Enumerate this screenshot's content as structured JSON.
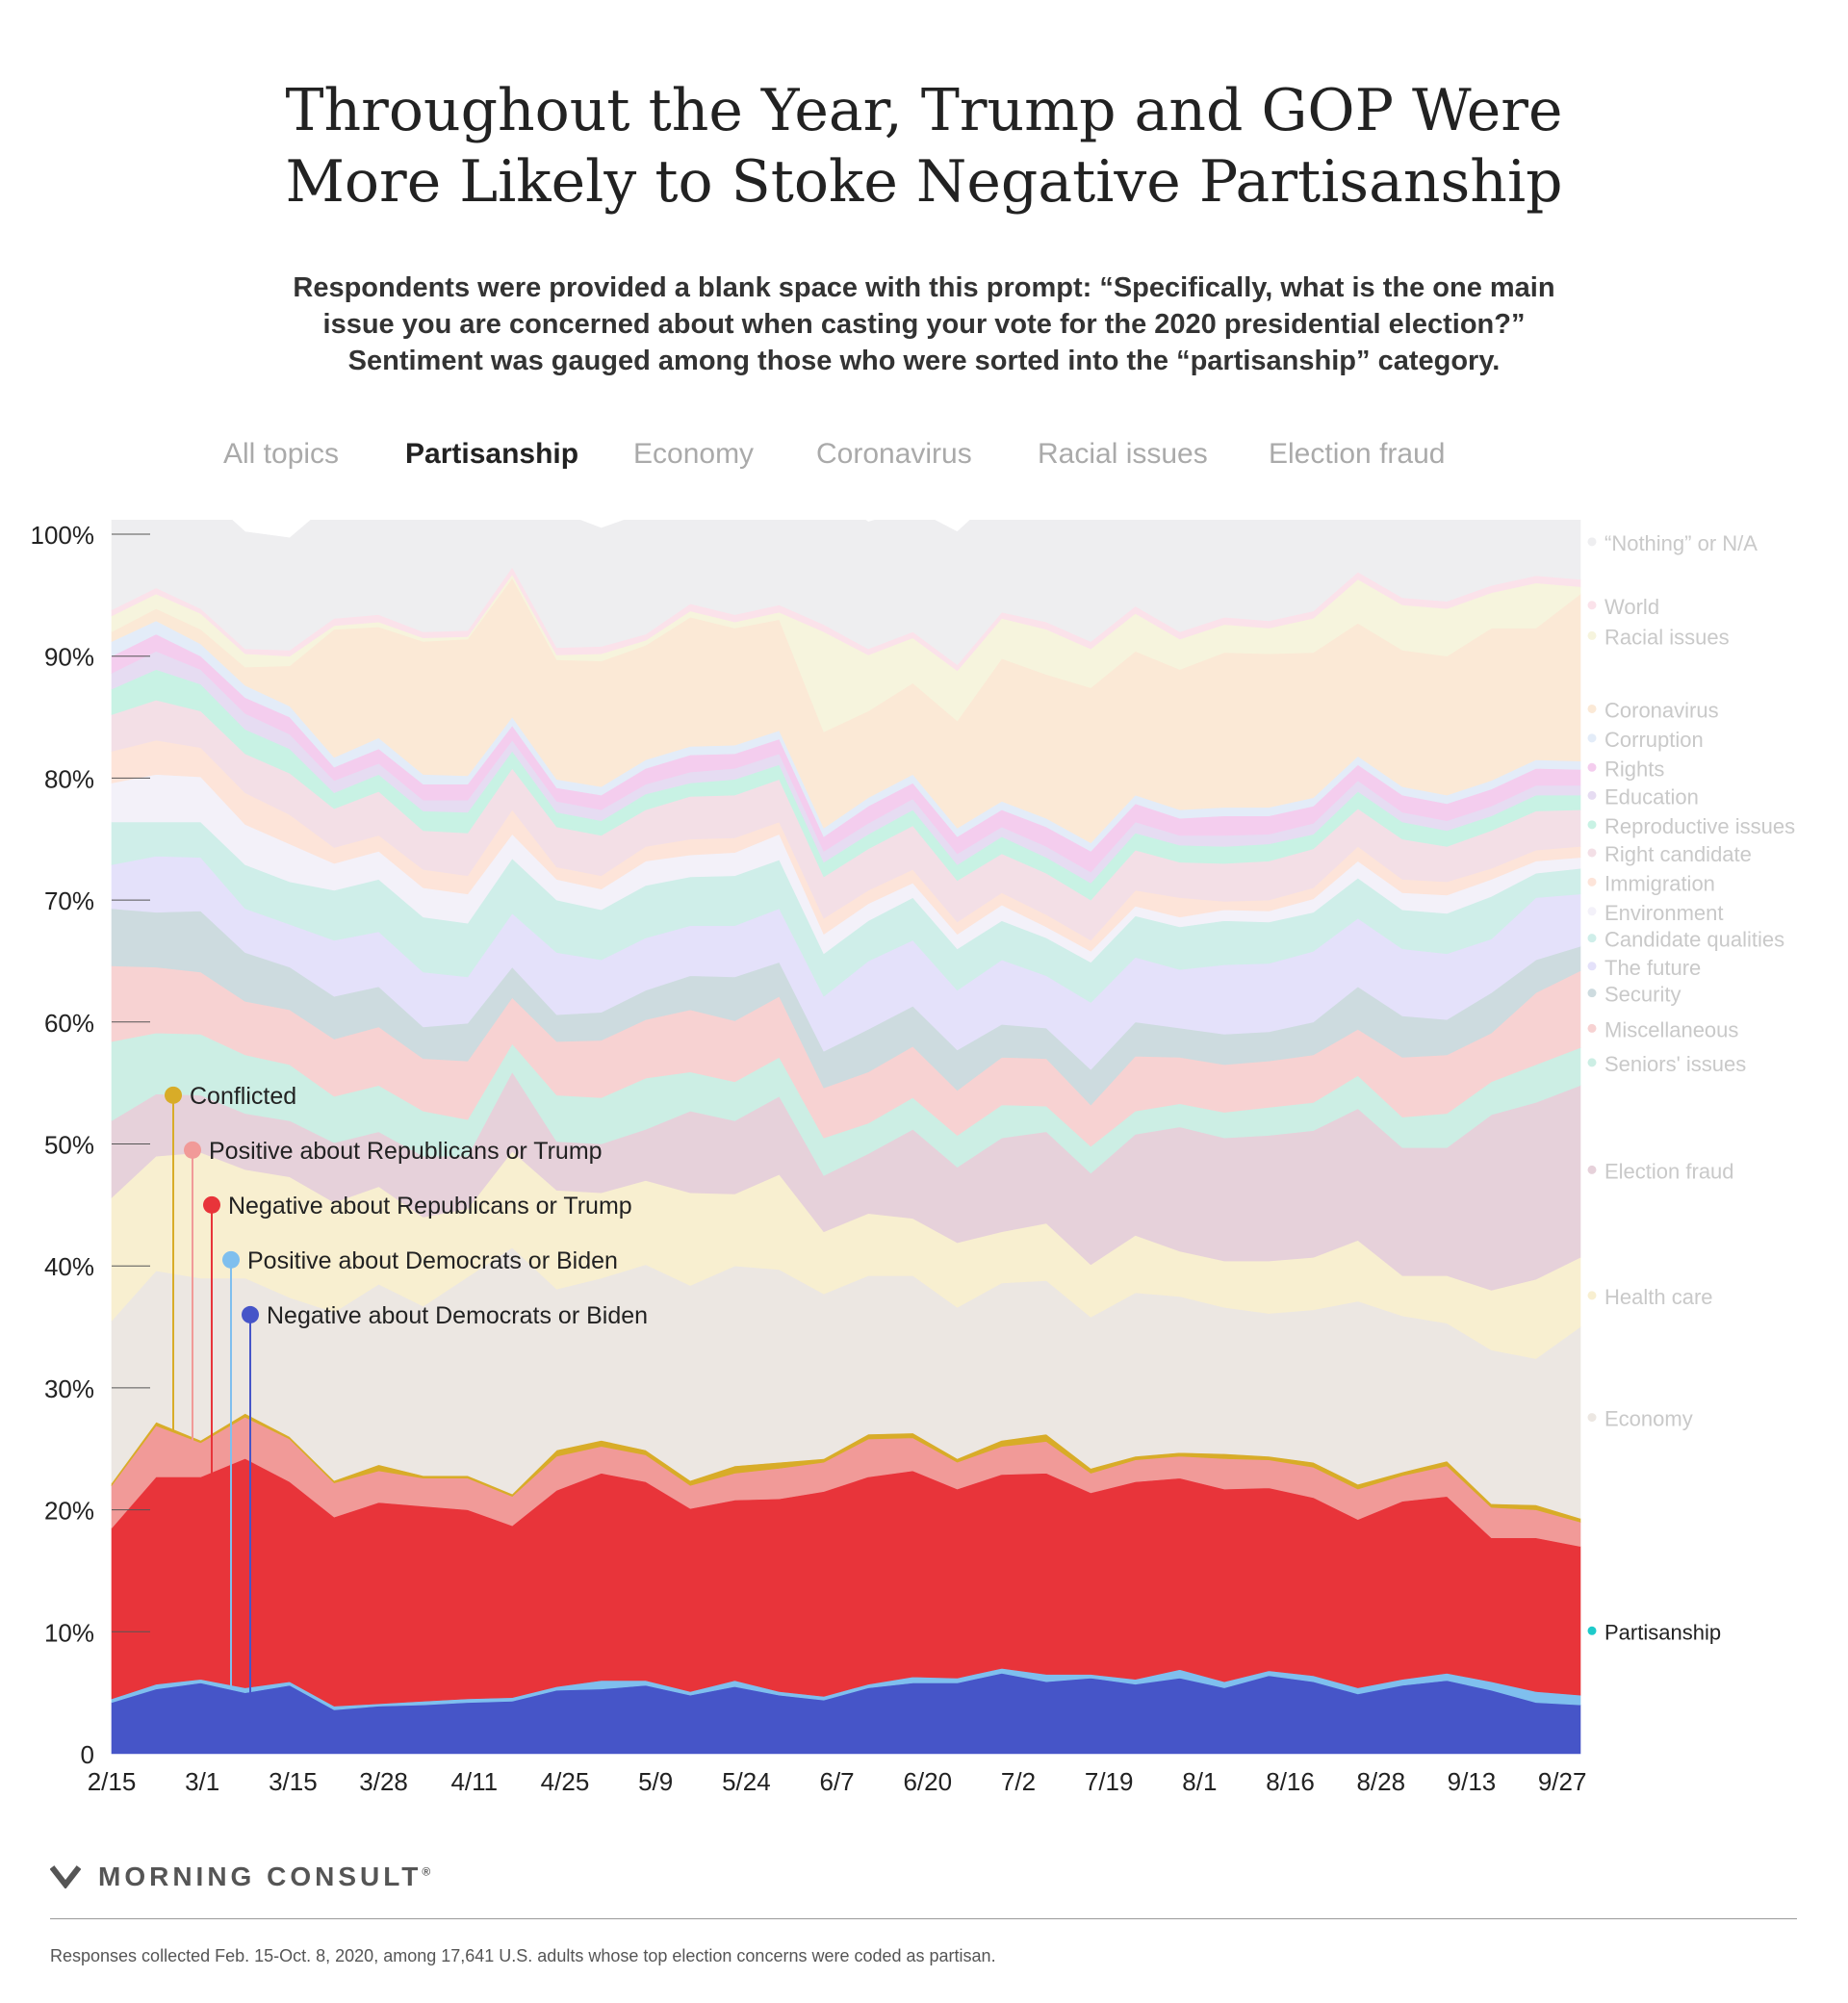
{
  "title": {
    "line1": "Throughout the Year, Trump and GOP Were",
    "line2": "More Likely to Stoke Negative Partisanship"
  },
  "subtitle": {
    "line1": "Respondents were provided a blank space with this prompt: “Specifically, what is the one main",
    "line2": "issue you are concerned about when casting your vote for the 2020 presidential election?”",
    "line3": "Sentiment was gauged among those who were sorted into the “partisanship” category."
  },
  "tabs": [
    {
      "label": "All topics",
      "active": false
    },
    {
      "label": "Partisanship",
      "active": true
    },
    {
      "label": "Economy",
      "active": false
    },
    {
      "label": "Coronavirus",
      "active": false
    },
    {
      "label": "Racial issues",
      "active": false
    },
    {
      "label": "Election fraud",
      "active": false
    }
  ],
  "brand": {
    "name": "MORNING CONSULT",
    "mark": "®"
  },
  "footnote": "Responses collected Feb. 15-Oct. 8, 2020, among 17,641 U.S. adults whose top election concerns were coded as partisan.",
  "chart_data": {
    "type": "area",
    "stacked": true,
    "ylim": [
      0,
      100
    ],
    "yticks": [
      "0",
      "10%",
      "20%",
      "30%",
      "40%",
      "50%",
      "60%",
      "70%",
      "80%",
      "90%",
      "100%"
    ],
    "x_tick_labels": [
      "2/15",
      "3/1",
      "3/15",
      "3/28",
      "4/11",
      "4/25",
      "5/9",
      "5/24",
      "6/7",
      "6/20",
      "7/2",
      "7/19",
      "8/1",
      "8/16",
      "8/28",
      "9/13",
      "9/27"
    ],
    "partisanship_layers": [
      {
        "name": "Negative about Democrats or Biden",
        "color": "#4655c8",
        "values": [
          4.2,
          5.3,
          5.8,
          5.0,
          5.6,
          3.6,
          3.9,
          4.0,
          4.2,
          4.3,
          5.2,
          5.3,
          5.6,
          4.8,
          5.5,
          4.8,
          4.4,
          5.4,
          5.8,
          5.8,
          6.6,
          5.9,
          6.2,
          5.7,
          6.2,
          5.4,
          6.4,
          5.9,
          4.9,
          5.6,
          6.0,
          5.2,
          4.2,
          4.0
        ]
      },
      {
        "name": "Positive about Democrats or Biden",
        "color": "#7fbfee",
        "values": [
          0.3,
          0.4,
          0.3,
          0.4,
          0.3,
          0.3,
          0.2,
          0.3,
          0.3,
          0.3,
          0.3,
          0.7,
          0.4,
          0.3,
          0.5,
          0.3,
          0.3,
          0.3,
          0.5,
          0.4,
          0.4,
          0.6,
          0.3,
          0.4,
          0.7,
          0.5,
          0.4,
          0.5,
          0.5,
          0.5,
          0.6,
          0.7,
          0.9,
          0.8
        ]
      },
      {
        "name": "Negative about Republicans or Trump",
        "color": "#e8343a",
        "values": [
          14.0,
          17.0,
          16.6,
          18.8,
          16.4,
          15.5,
          16.5,
          16.0,
          15.5,
          14.1,
          16.1,
          17.0,
          16.3,
          15.0,
          14.8,
          15.8,
          16.8,
          17.0,
          16.9,
          15.5,
          15.9,
          16.5,
          14.9,
          16.2,
          15.7,
          15.8,
          15.0,
          14.6,
          13.8,
          14.6,
          14.5,
          11.8,
          12.6,
          12.2
        ]
      },
      {
        "name": "Positive about Republicans or Trump",
        "color": "#f19a98",
        "values": [
          3.5,
          4.2,
          2.8,
          3.4,
          3.5,
          2.8,
          2.6,
          2.3,
          2.6,
          2.4,
          2.8,
          2.2,
          2.2,
          1.9,
          2.2,
          2.5,
          2.4,
          3.1,
          2.7,
          2.2,
          2.3,
          2.6,
          1.6,
          1.8,
          1.8,
          2.5,
          2.3,
          2.5,
          2.5,
          2.1,
          2.5,
          2.5,
          2.3,
          2.0
        ]
      },
      {
        "name": "Conflicted",
        "color": "#d8ac28",
        "values": [
          0.2,
          0.3,
          0.2,
          0.3,
          0.2,
          0.2,
          0.5,
          0.2,
          0.2,
          0.2,
          0.5,
          0.5,
          0.4,
          0.4,
          0.6,
          0.5,
          0.3,
          0.4,
          0.4,
          0.3,
          0.5,
          0.6,
          0.4,
          0.3,
          0.3,
          0.4,
          0.3,
          0.4,
          0.4,
          0.3,
          0.4,
          0.3,
          0.4,
          0.3
        ]
      }
    ],
    "category_layers": [
      {
        "name": "Partisanship",
        "color": "#1ecaca",
        "values": [
          22.2,
          27.2,
          25.7,
          27.9,
          26.0,
          22.4,
          23.7,
          22.8,
          23.2,
          21.4,
          24.9,
          25.7,
          24.9,
          22.4,
          23.6,
          23.9,
          24.2,
          26.2,
          26.3,
          24.2,
          25.7,
          25.8,
          23.4,
          24.4,
          24.7,
          24.6,
          24.4,
          23.9,
          22.1,
          23.1,
          24.0,
          20.5,
          20.4,
          19.3
        ]
      },
      {
        "name": "Economy",
        "color": "#ece7e2",
        "values": [
          13.3,
          12.4,
          13.3,
          11.1,
          11.4,
          13.8,
          14.8,
          13.9,
          16.3,
          20.2,
          13.2,
          13.3,
          15.2,
          16.0,
          16.4,
          15.8,
          13.5,
          13.0,
          12.9,
          12.4,
          12.9,
          12.6,
          12.4,
          13.4,
          12.8,
          12.0,
          11.7,
          12.5,
          15.0,
          12.8,
          11.3,
          12.6,
          12.0,
          15.7
        ]
      },
      {
        "name": "Health care",
        "color": "#f8efd0",
        "values": [
          10.1,
          9.4,
          10.3,
          8.9,
          9.9,
          9.0,
          8.0,
          7.3,
          5.6,
          7.9,
          8.1,
          7.0,
          6.9,
          7.6,
          5.9,
          7.8,
          5.1,
          5.1,
          4.7,
          5.3,
          4.2,
          4.7,
          4.3,
          4.7,
          3.7,
          3.8,
          4.3,
          4.3,
          5.0,
          3.3,
          3.9,
          4.9,
          6.5,
          5.7
        ]
      },
      {
        "name": "Election fraud",
        "color": "#e6d1da",
        "values": [
          6.3,
          5.1,
          4.7,
          4.6,
          4.6,
          4.9,
          4.5,
          5.0,
          4.3,
          6.5,
          4.0,
          4.0,
          4.2,
          6.7,
          6.0,
          6.4,
          4.6,
          4.9,
          7.3,
          6.2,
          7.7,
          7.5,
          7.5,
          8.3,
          10.2,
          10.1,
          10.3,
          10.4,
          10.8,
          10.5,
          10.5,
          14.4,
          14.5,
          14.1
        ]
      },
      {
        "name": "Seniors' issues",
        "color": "#cceee4",
        "values": [
          6.5,
          5.0,
          5.0,
          4.8,
          4.6,
          3.8,
          3.8,
          3.7,
          3.0,
          2.3,
          3.8,
          3.8,
          4.2,
          3.2,
          3.2,
          3.2,
          3.1,
          2.5,
          2.6,
          2.6,
          2.7,
          2.1,
          2.2,
          1.9,
          1.9,
          2.1,
          2.3,
          2.3,
          2.7,
          2.5,
          2.8,
          2.7,
          3.1,
          3.1
        ]
      },
      {
        "name": "Miscellaneous",
        "color": "#f7d2d2",
        "values": [
          6.2,
          5.4,
          5.1,
          4.4,
          4.5,
          4.7,
          4.8,
          4.3,
          4.8,
          3.8,
          4.4,
          4.7,
          4.8,
          5.1,
          5.0,
          5.0,
          4.1,
          4.2,
          4.2,
          3.7,
          3.9,
          3.9,
          3.4,
          4.5,
          3.8,
          3.9,
          3.8,
          3.9,
          3.8,
          4.9,
          4.8,
          4.0,
          5.9,
          6.3
        ]
      },
      {
        "name": "Security",
        "color": "#cddbdf",
        "values": [
          4.7,
          4.5,
          5.0,
          4.0,
          3.5,
          3.5,
          3.3,
          2.6,
          3.1,
          2.5,
          2.2,
          2.3,
          2.4,
          2.8,
          3.6,
          2.8,
          3.0,
          3.5,
          3.3,
          3.3,
          2.7,
          2.5,
          2.9,
          2.8,
          2.4,
          2.5,
          2.4,
          2.7,
          3.5,
          3.4,
          2.9,
          3.3,
          2.7,
          2.0
        ]
      },
      {
        "name": "The future",
        "color": "#e4e1fa",
        "values": [
          3.6,
          4.6,
          4.4,
          3.6,
          3.5,
          4.6,
          4.5,
          4.5,
          3.8,
          4.4,
          5.1,
          4.3,
          4.3,
          4.1,
          4.2,
          4.4,
          4.5,
          5.6,
          5.4,
          4.9,
          5.3,
          4.3,
          5.5,
          5.3,
          4.8,
          5.7,
          5.6,
          5.8,
          5.6,
          5.5,
          5.4,
          4.4,
          5.1,
          4.3
        ]
      },
      {
        "name": "Candidate qualities",
        "color": "#cfeee9",
        "values": [
          3.5,
          2.8,
          2.9,
          3.6,
          3.5,
          4.1,
          4.3,
          4.5,
          4.4,
          4.5,
          4.3,
          4.1,
          4.3,
          4.0,
          4.1,
          4.0,
          3.5,
          3.3,
          3.5,
          3.4,
          3.2,
          3.1,
          3.3,
          3.4,
          3.5,
          3.6,
          3.4,
          3.2,
          3.3,
          3.2,
          3.3,
          3.5,
          2.0,
          2.1
        ]
      },
      {
        "name": "Environment",
        "color": "#f3f1f9",
        "values": [
          3.2,
          3.9,
          3.7,
          3.3,
          3.1,
          2.2,
          2.3,
          2.4,
          2.4,
          2.0,
          1.7,
          1.7,
          2.0,
          1.8,
          1.9,
          2.1,
          1.6,
          1.4,
          1.2,
          1.2,
          1.3,
          0.9,
          0.9,
          0.8,
          0.8,
          0.9,
          0.9,
          1.1,
          1.4,
          1.4,
          1.5,
          1.4,
          1.0,
          0.9
        ]
      },
      {
        "name": "Immigration",
        "color": "#fde4d9",
        "values": [
          2.6,
          2.8,
          2.4,
          2.6,
          2.4,
          1.3,
          1.3,
          1.5,
          1.5,
          2.0,
          1.0,
          1.1,
          1.2,
          1.3,
          1.2,
          1.0,
          1.3,
          1.1,
          1.1,
          1.0,
          1.0,
          1.0,
          0.9,
          1.3,
          1.6,
          0.7,
          0.9,
          0.9,
          1.2,
          1.1,
          1.1,
          0.9,
          0.9,
          0.9
        ]
      },
      {
        "name": "Right candidate",
        "color": "#f3dfe6",
        "values": [
          3.0,
          3.3,
          3.0,
          3.2,
          3.4,
          3.2,
          3.6,
          3.2,
          3.5,
          3.4,
          3.3,
          3.3,
          3.0,
          3.5,
          3.5,
          3.5,
          3.4,
          3.4,
          3.6,
          3.4,
          3.2,
          3.4,
          3.3,
          3.3,
          2.9,
          3.1,
          3.2,
          3.2,
          3.1,
          3.3,
          2.9,
          3.1,
          3.2,
          3.0
        ]
      },
      {
        "name": "Reproductive issues",
        "color": "#c8f2e4",
        "values": [
          2.1,
          2.5,
          2.2,
          2.0,
          2.0,
          1.3,
          1.4,
          1.6,
          1.7,
          1.4,
          1.2,
          1.2,
          1.3,
          1.1,
          1.3,
          1.2,
          1.2,
          1.2,
          1.3,
          1.3,
          1.4,
          1.3,
          1.4,
          1.4,
          1.4,
          1.4,
          1.4,
          1.2,
          1.4,
          1.4,
          1.3,
          1.2,
          1.3,
          1.2
        ]
      },
      {
        "name": "Education",
        "color": "#e6dcf2",
        "values": [
          1.3,
          1.5,
          1.2,
          1.3,
          1.2,
          1.0,
          0.9,
          0.9,
          1.0,
          0.9,
          0.9,
          0.9,
          0.8,
          0.9,
          0.9,
          0.9,
          0.9,
          0.9,
          0.9,
          0.9,
          0.8,
          0.9,
          0.9,
          0.9,
          0.8,
          0.9,
          0.8,
          0.9,
          0.9,
          0.8,
          0.8,
          0.8,
          0.8,
          0.8
        ]
      },
      {
        "name": "Rights",
        "color": "#f4cdee",
        "values": [
          1.4,
          1.4,
          1.1,
          1.3,
          1.4,
          1.1,
          1.2,
          1.3,
          1.3,
          1.2,
          1.1,
          1.2,
          1.3,
          1.4,
          1.2,
          1.2,
          1.2,
          1.4,
          1.3,
          1.4,
          1.4,
          1.6,
          1.7,
          1.5,
          1.4,
          1.6,
          1.5,
          1.4,
          1.3,
          1.4,
          1.4,
          1.4,
          1.4,
          1.3
        ]
      },
      {
        "name": "Corruption",
        "color": "#e3ecf8",
        "values": [
          1.2,
          1.1,
          1.0,
          1.0,
          0.9,
          0.8,
          0.9,
          0.8,
          0.7,
          0.7,
          0.7,
          0.7,
          0.7,
          0.7,
          0.7,
          0.7,
          0.7,
          0.7,
          0.7,
          0.7,
          0.7,
          0.7,
          0.7,
          0.7,
          0.7,
          0.7,
          0.7,
          0.7,
          0.7,
          0.7,
          0.7,
          0.7,
          0.7,
          0.7
        ]
      },
      {
        "name": "Coronavirus",
        "color": "#fbe9d6",
        "values": [
          0.8,
          1.0,
          1.2,
          1.5,
          3.3,
          10.5,
          9.1,
          10.9,
          11.2,
          11.4,
          9.8,
          10.3,
          9.4,
          10.6,
          9.6,
          9.1,
          7.9,
          7.1,
          7.5,
          8.8,
          11.7,
          11.8,
          12.7,
          11.8,
          11.5,
          12.7,
          12.6,
          11.9,
          10.9,
          11.2,
          11.4,
          12.5,
          10.8,
          13.7
        ]
      },
      {
        "name": "Racial issues",
        "color": "#f6f4dd",
        "values": [
          1.3,
          1.2,
          1.3,
          1.1,
          0.8,
          0.3,
          0.4,
          0.3,
          0.2,
          0.3,
          0.4,
          0.6,
          0.4,
          0.5,
          0.5,
          0.6,
          8.2,
          4.6,
          3.7,
          4.1,
          3.3,
          3.7,
          3.2,
          3.1,
          2.5,
          2.3,
          2.1,
          2.8,
          3.6,
          3.7,
          3.9,
          2.9,
          3.7,
          0.6
        ]
      },
      {
        "name": "World",
        "color": "#fbe2ea",
        "values": [
          0.5,
          0.5,
          0.4,
          0.4,
          0.5,
          0.6,
          0.6,
          0.5,
          0.5,
          0.6,
          0.6,
          0.6,
          0.5,
          0.6,
          0.6,
          0.6,
          0.6,
          0.5,
          0.5,
          0.5,
          0.5,
          0.6,
          0.6,
          0.6,
          0.6,
          0.6,
          0.6,
          0.6,
          0.6,
          0.6,
          0.6,
          0.6,
          0.6,
          0.6
        ]
      },
      {
        "name": "“Nothing” or N/A",
        "color": "#eeeef0",
        "values": [
          8.8,
          8.3,
          9.6,
          9.6,
          9.2,
          9.7,
          9.7,
          9.6,
          9.4,
          10.2,
          11.2,
          9.7,
          10.0,
          9.8,
          9.5,
          9.4,
          11.1,
          10.4,
          10.1,
          10.9,
          10.0,
          9.1,
          10.4,
          10.4,
          11.7,
          11.6,
          12.5,
          11.9,
          12.4,
          12.6,
          12.5,
          12.8,
          12.2,
          13.2
        ]
      }
    ],
    "annotations": [
      {
        "label": "Conflicted",
        "color": "#d8ac28",
        "y_percent": 54.0
      },
      {
        "label": "Positive about Republicans or Trump",
        "color": "#f19a98",
        "y_percent": 49.5
      },
      {
        "label": "Negative about Republicans or Trump",
        "color": "#e8343a",
        "y_percent": 45.0
      },
      {
        "label": "Positive about Democrats or Biden",
        "color": "#7fbfee",
        "y_percent": 40.5
      },
      {
        "label": "Negative about Democrats or Biden",
        "color": "#4655c8",
        "y_percent": 36.0
      }
    ],
    "legend_text_color": "#c9c9c9",
    "legend_highlight_color": "#222222",
    "legend_placement": "right"
  }
}
